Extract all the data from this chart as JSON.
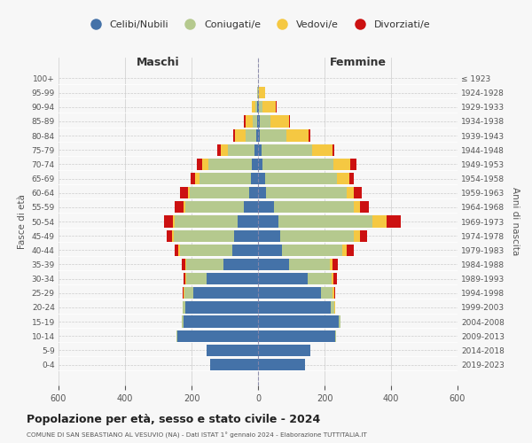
{
  "age_groups": [
    "0-4",
    "5-9",
    "10-14",
    "15-19",
    "20-24",
    "25-29",
    "30-34",
    "35-39",
    "40-44",
    "45-49",
    "50-54",
    "55-59",
    "60-64",
    "65-69",
    "70-74",
    "75-79",
    "80-84",
    "85-89",
    "90-94",
    "95-99",
    "100+"
  ],
  "birth_years": [
    "2019-2023",
    "2014-2018",
    "2009-2013",
    "2004-2008",
    "1999-2003",
    "1994-1998",
    "1989-1993",
    "1984-1988",
    "1979-1983",
    "1974-1978",
    "1969-1973",
    "1964-1968",
    "1959-1963",
    "1954-1958",
    "1949-1953",
    "1944-1948",
    "1939-1943",
    "1934-1938",
    "1929-1933",
    "1924-1928",
    "≤ 1923"
  ],
  "colors": {
    "celibi": "#4472a8",
    "coniugati": "#b5c98e",
    "vedovi": "#f5c842",
    "divorziati": "#cc1111"
  },
  "males": {
    "celibi": [
      145,
      155,
      242,
      225,
      218,
      195,
      155,
      105,
      78,
      72,
      62,
      42,
      28,
      22,
      18,
      12,
      6,
      4,
      2,
      1,
      0
    ],
    "coniugati": [
      0,
      0,
      3,
      5,
      10,
      27,
      62,
      112,
      158,
      182,
      188,
      178,
      178,
      155,
      132,
      78,
      32,
      12,
      5,
      1,
      0
    ],
    "vedovi": [
      0,
      0,
      0,
      0,
      0,
      2,
      2,
      2,
      3,
      4,
      5,
      5,
      6,
      12,
      17,
      22,
      32,
      22,
      12,
      2,
      0
    ],
    "divorziati": [
      0,
      0,
      0,
      0,
      0,
      2,
      6,
      10,
      12,
      17,
      27,
      27,
      22,
      14,
      18,
      10,
      5,
      4,
      0,
      0,
      0
    ]
  },
  "females": {
    "celibi": [
      142,
      157,
      232,
      242,
      218,
      188,
      148,
      93,
      72,
      67,
      62,
      47,
      25,
      20,
      14,
      10,
      6,
      5,
      2,
      1,
      0
    ],
    "coniugati": [
      0,
      0,
      3,
      5,
      12,
      37,
      72,
      122,
      182,
      222,
      282,
      242,
      242,
      218,
      212,
      152,
      78,
      32,
      10,
      2,
      0
    ],
    "vedovi": [
      0,
      0,
      0,
      1,
      2,
      4,
      6,
      10,
      12,
      17,
      42,
      17,
      22,
      37,
      52,
      62,
      67,
      57,
      42,
      17,
      1
    ],
    "divorziati": [
      0,
      0,
      0,
      0,
      0,
      4,
      10,
      14,
      22,
      22,
      42,
      27,
      22,
      14,
      17,
      6,
      5,
      3,
      1,
      0,
      0
    ]
  },
  "xlim": 600,
  "title": "Popolazione per età, sesso e stato civile - 2024",
  "subtitle": "COMUNE DI SAN SEBASTIANO AL VESUVIO (NA) - Dati ISTAT 1° gennaio 2024 - Elaborazione TUTTITALIA.IT",
  "xlabel_left": "Maschi",
  "xlabel_right": "Femmine",
  "ylabel_left": "Fasce di età",
  "ylabel_right": "Anni di nascita",
  "legend_labels": [
    "Celibi/Nubili",
    "Coniugati/e",
    "Vedovi/e",
    "Divorziati/e"
  ],
  "bg_color": "#f7f7f7"
}
